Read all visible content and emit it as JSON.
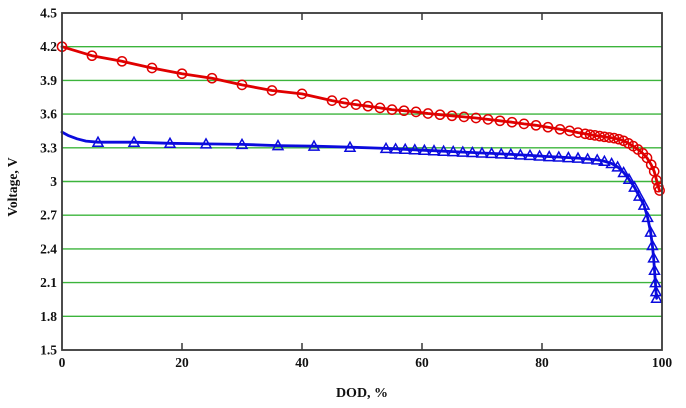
{
  "chart_data": {
    "type": "line",
    "title": "",
    "xlabel": "DOD, %",
    "ylabel": "Voltage, V",
    "xlim": [
      0,
      100
    ],
    "ylim": [
      1.5,
      4.5
    ],
    "xticks": [
      0,
      20,
      40,
      60,
      80,
      100
    ],
    "yticks": [
      4.5,
      4.2,
      3.9,
      3.6,
      3.3,
      3,
      2.7,
      2.4,
      2.1,
      1.8,
      1.5
    ],
    "gridlines_y": [
      4.2,
      3.9,
      3.6,
      3.3,
      3,
      2.7,
      2.4,
      2.1,
      1.8
    ],
    "grid": true,
    "grid_color": "#3cb43c",
    "axis_color": "#383838",
    "tick_color": "#111111",
    "legend_position": "none",
    "series": [
      {
        "id": "red-circle-series",
        "label": "red curve, circle markers",
        "color": "#e00000",
        "marker": "circle",
        "points": [
          [
            0,
            4.2,
            1
          ],
          [
            5,
            4.12,
            1
          ],
          [
            10,
            4.07,
            1
          ],
          [
            15,
            4.01,
            1
          ],
          [
            20,
            3.96,
            1
          ],
          [
            25,
            3.92,
            1
          ],
          [
            30,
            3.86,
            1
          ],
          [
            35,
            3.81,
            1
          ],
          [
            40,
            3.78,
            1
          ],
          [
            45,
            3.72,
            1
          ],
          [
            47,
            3.7,
            1
          ],
          [
            49,
            3.685,
            1
          ],
          [
            51,
            3.67,
            1
          ],
          [
            53,
            3.655,
            1
          ],
          [
            55,
            3.64,
            1
          ],
          [
            57,
            3.63,
            1
          ],
          [
            59,
            3.62,
            1
          ],
          [
            61,
            3.605,
            1
          ],
          [
            63,
            3.595,
            1
          ],
          [
            65,
            3.585,
            1
          ],
          [
            67,
            3.575,
            1
          ],
          [
            69,
            3.565,
            1
          ],
          [
            71,
            3.553,
            1
          ],
          [
            73,
            3.54,
            1
          ],
          [
            75,
            3.528,
            1
          ],
          [
            77,
            3.513,
            1
          ],
          [
            79,
            3.5,
            1
          ],
          [
            81,
            3.483,
            1
          ],
          [
            83,
            3.465,
            1
          ],
          [
            84.6,
            3.45,
            1
          ],
          [
            86,
            3.435,
            1
          ],
          [
            87.2,
            3.425,
            1
          ],
          [
            88,
            3.417,
            1
          ],
          [
            88.8,
            3.41,
            1
          ],
          [
            89.6,
            3.404,
            1
          ],
          [
            90.4,
            3.398,
            1
          ],
          [
            91.2,
            3.392,
            1
          ],
          [
            92,
            3.386,
            1
          ],
          [
            92.8,
            3.377,
            1
          ],
          [
            93.6,
            3.362,
            1
          ],
          [
            94.4,
            3.34,
            1
          ],
          [
            95.2,
            3.315,
            1
          ],
          [
            96,
            3.285,
            1
          ],
          [
            96.8,
            3.25,
            1
          ],
          [
            97.5,
            3.21,
            1
          ],
          [
            98.2,
            3.15,
            1
          ],
          [
            98.7,
            3.09,
            1
          ],
          [
            99.1,
            3.01,
            1
          ],
          [
            99.4,
            2.95,
            1
          ],
          [
            99.6,
            2.92,
            1
          ]
        ]
      },
      {
        "id": "blue-triangle-series",
        "label": "blue curve, triangle markers",
        "color": "#0b0bdd",
        "marker": "triangle-up",
        "points": [
          [
            0,
            3.44,
            0
          ],
          [
            1,
            3.41,
            0
          ],
          [
            2.5,
            3.38,
            0
          ],
          [
            4,
            3.36,
            0
          ],
          [
            6,
            3.35,
            1
          ],
          [
            12,
            3.35,
            1
          ],
          [
            18,
            3.34,
            1
          ],
          [
            24,
            3.335,
            1
          ],
          [
            30,
            3.33,
            1
          ],
          [
            36,
            3.32,
            1
          ],
          [
            42,
            3.315,
            1
          ],
          [
            48,
            3.305,
            1
          ],
          [
            54,
            3.295,
            1
          ],
          [
            55.6,
            3.29,
            1
          ],
          [
            57.2,
            3.287,
            1
          ],
          [
            58.8,
            3.282,
            1
          ],
          [
            60.4,
            3.278,
            1
          ],
          [
            62,
            3.274,
            1
          ],
          [
            63.6,
            3.27,
            1
          ],
          [
            65.2,
            3.266,
            1
          ],
          [
            66.8,
            3.262,
            1
          ],
          [
            68.4,
            3.258,
            1
          ],
          [
            70,
            3.254,
            1
          ],
          [
            71.6,
            3.25,
            1
          ],
          [
            73.2,
            3.246,
            1
          ],
          [
            74.8,
            3.242,
            1
          ],
          [
            76.4,
            3.237,
            1
          ],
          [
            78,
            3.232,
            1
          ],
          [
            79.6,
            3.227,
            1
          ],
          [
            81.2,
            3.222,
            1
          ],
          [
            82.8,
            3.218,
            1
          ],
          [
            84.4,
            3.213,
            1
          ],
          [
            86,
            3.208,
            1
          ],
          [
            87.6,
            3.2,
            1
          ],
          [
            89.2,
            3.192,
            1
          ],
          [
            90.4,
            3.18,
            1
          ],
          [
            91.6,
            3.16,
            1
          ],
          [
            92.6,
            3.13,
            1
          ],
          [
            93.6,
            3.08,
            1
          ],
          [
            94.5,
            3.02,
            1
          ],
          [
            95.4,
            2.95,
            1
          ],
          [
            96.2,
            2.87,
            1
          ],
          [
            97,
            2.79,
            1
          ],
          [
            97.6,
            2.68,
            1
          ],
          [
            98.1,
            2.55,
            1
          ],
          [
            98.4,
            2.43,
            1
          ],
          [
            98.6,
            2.32,
            1
          ],
          [
            98.75,
            2.21,
            1
          ],
          [
            98.9,
            2.1,
            1
          ],
          [
            99,
            2.02,
            1
          ],
          [
            99.1,
            1.96,
            1
          ]
        ]
      }
    ]
  }
}
